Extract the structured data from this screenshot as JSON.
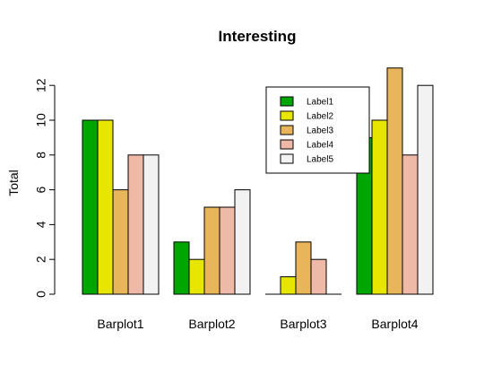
{
  "chart_data": {
    "type": "bar",
    "title": "Interesting",
    "xlabel": "",
    "ylabel": "Total",
    "categories": [
      "Barplot1",
      "Barplot2",
      "Barplot3",
      "Barplot4"
    ],
    "series": [
      {
        "name": "Label1",
        "color": "#00A600",
        "values": [
          10,
          3,
          0,
          9
        ]
      },
      {
        "name": "Label2",
        "color": "#E6E600",
        "values": [
          10,
          2,
          1,
          10
        ]
      },
      {
        "name": "Label3",
        "color": "#E8B55A",
        "values": [
          6,
          5,
          3,
          13
        ]
      },
      {
        "name": "Label4",
        "color": "#EFB9A8",
        "values": [
          8,
          5,
          2,
          8
        ]
      },
      {
        "name": "Label5",
        "color": "#F2F2F2",
        "values": [
          8,
          6,
          0,
          12
        ]
      }
    ],
    "yticks": [
      0,
      2,
      4,
      6,
      8,
      10,
      12
    ],
    "ylim": [
      0,
      13
    ],
    "grid": false,
    "legend_position": "top-right"
  }
}
